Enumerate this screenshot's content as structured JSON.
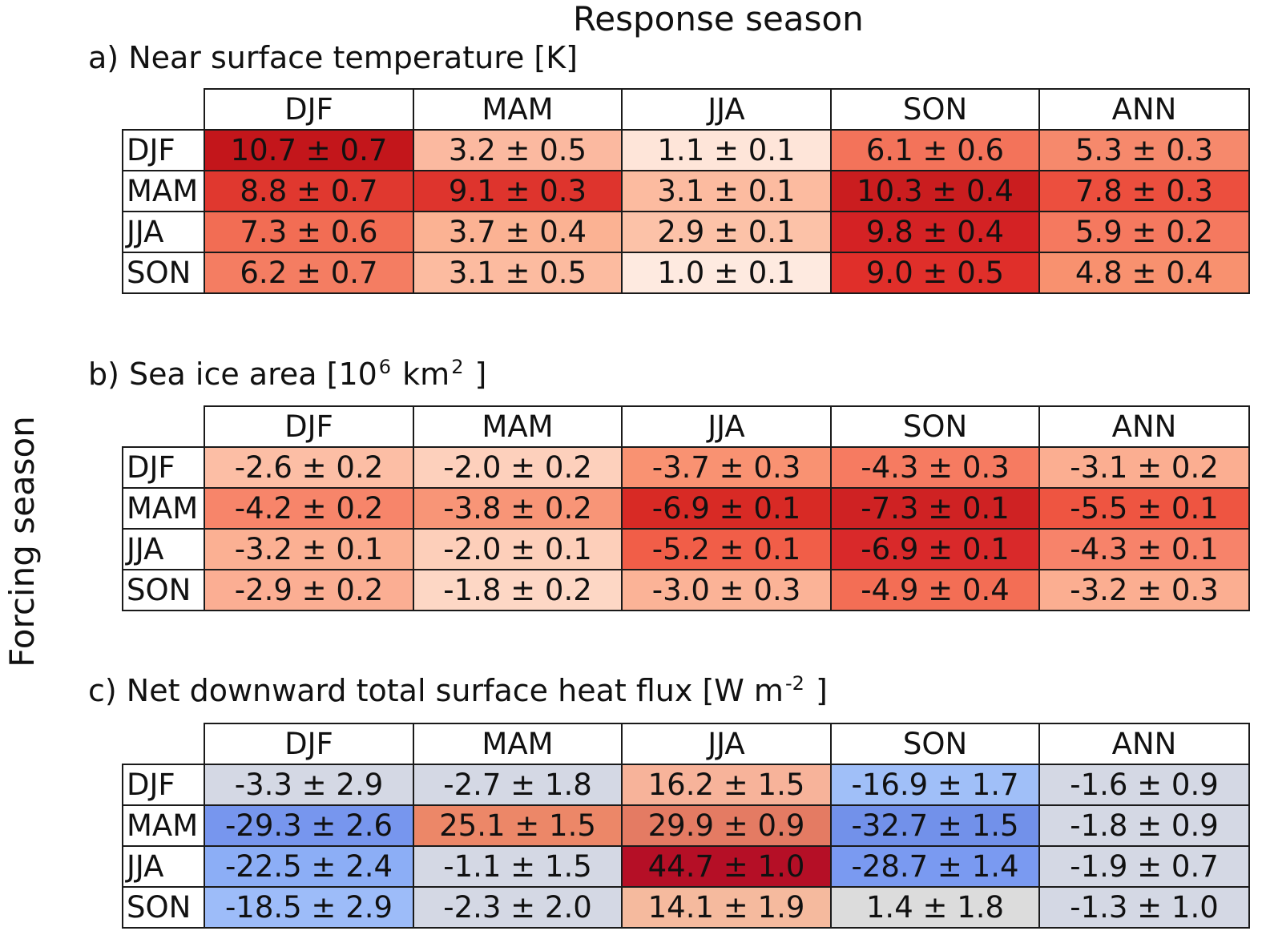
{
  "title": "Response season",
  "ylabel": "Forcing season",
  "chart_data": [
    {
      "type": "table",
      "id": "a",
      "title_parts": [
        "a) Near surface temperature [K]"
      ],
      "columns": [
        "DJF",
        "MAM",
        "JJA",
        "SON",
        "ANN"
      ],
      "rows": [
        "DJF",
        "MAM",
        "JJA",
        "SON"
      ],
      "values": [
        [
          "10.7 ± 0.7",
          "3.2 ± 0.5",
          "1.1 ± 0.1",
          "6.1 ± 0.6",
          "5.3 ± 0.3"
        ],
        [
          "8.8 ± 0.7",
          "9.1 ± 0.3",
          "3.1 ± 0.1",
          "10.3 ± 0.4",
          "7.8 ± 0.3"
        ],
        [
          "7.3 ± 0.6",
          "3.7 ± 0.4",
          "2.9 ± 0.1",
          "9.8 ± 0.4",
          "5.9 ± 0.2"
        ],
        [
          "6.2 ± 0.7",
          "3.1 ± 0.5",
          "1.0 ± 0.1",
          "9.0 ± 0.5",
          "4.8 ± 0.4"
        ]
      ],
      "colors": [
        [
          "#c3161b",
          "#fbb9a0",
          "#fee5d9",
          "#f3735a",
          "#f6896c"
        ],
        [
          "#e0382f",
          "#de342d",
          "#fcbba0",
          "#ca1d1f",
          "#ec4f3e"
        ],
        [
          "#f26d54",
          "#fbb293",
          "#fcc2a8",
          "#d42224",
          "#f5795f"
        ],
        [
          "#f47d62",
          "#fcbba0",
          "#feeae0",
          "#e02f2a",
          "#f8916f"
        ]
      ]
    },
    {
      "type": "table",
      "id": "b",
      "title_parts": [
        "b) Sea ice area [10",
        "6",
        " km",
        "2",
        " ]"
      ],
      "columns": [
        "DJF",
        "MAM",
        "JJA",
        "SON",
        "ANN"
      ],
      "rows": [
        "DJF",
        "MAM",
        "JJA",
        "SON"
      ],
      "values": [
        [
          "-2.6 ± 0.2",
          "-2.0 ± 0.2",
          "-3.7 ± 0.3",
          "-4.3 ± 0.3",
          "-3.1 ± 0.2"
        ],
        [
          "-4.2 ± 0.2",
          "-3.8 ± 0.2",
          "-6.9 ± 0.1",
          "-7.3 ± 0.1",
          "-5.5 ± 0.1"
        ],
        [
          "-3.2 ± 0.1",
          "-2.0 ± 0.1",
          "-5.2 ± 0.1",
          "-6.9 ± 0.1",
          "-4.3 ± 0.1"
        ],
        [
          "-2.9 ± 0.2",
          "-1.8 ± 0.2",
          "-3.0 ± 0.3",
          "-4.9 ± 0.4",
          "-3.2 ± 0.3"
        ]
      ],
      "colors": [
        [
          "#fcbea5",
          "#fdd0bc",
          "#f99272",
          "#f67b61",
          "#fbae91"
        ],
        [
          "#f7856a",
          "#f89577",
          "#d82a25",
          "#cf2223",
          "#ee5541"
        ],
        [
          "#fbb093",
          "#fdcfba",
          "#f15e48",
          "#d9292a",
          "#f7836a"
        ],
        [
          "#fbae93",
          "#fdd7c5",
          "#fbb397",
          "#f36e55",
          "#fbae91"
        ]
      ]
    },
    {
      "type": "table",
      "id": "c",
      "title_parts": [
        "c) Net downward total surface heat flux [W m",
        "-2",
        " ]"
      ],
      "columns": [
        "DJF",
        "MAM",
        "JJA",
        "SON",
        "ANN"
      ],
      "rows": [
        "DJF",
        "MAM",
        "JJA",
        "SON"
      ],
      "values": [
        [
          "-3.3 ± 2.9",
          "-2.7 ± 1.8",
          "16.2 ± 1.5",
          "-16.9 ± 1.7",
          "-1.6 ± 0.9"
        ],
        [
          "-29.3 ± 2.6",
          "25.1 ± 1.5",
          "29.9 ± 0.9",
          "-32.7 ± 1.5",
          "-1.8 ± 0.9"
        ],
        [
          "-22.5 ± 2.4",
          "-1.1 ± 1.5",
          "44.7 ± 1.0",
          "-28.7 ± 1.4",
          "-1.9 ± 0.7"
        ],
        [
          "-18.5 ± 2.9",
          "-2.3 ± 2.0",
          "14.1 ± 1.9",
          "1.4 ± 1.8",
          "-1.3 ± 1.0"
        ]
      ],
      "colors": [
        [
          "#d4d8e4",
          "#d4d8e4",
          "#f7b39a",
          "#a0bff8",
          "#d4d8e4"
        ],
        [
          "#7796ee",
          "#ec8768",
          "#e47b63",
          "#7291ea",
          "#d4d8e4"
        ],
        [
          "#8caef6",
          "#d4d8e4",
          "#b50f26",
          "#7a9af1",
          "#d4d8e4"
        ],
        [
          "#9dbcf9",
          "#d4d8e4",
          "#f5ba9e",
          "#dcdcdc",
          "#d4d8e4"
        ]
      ]
    }
  ]
}
